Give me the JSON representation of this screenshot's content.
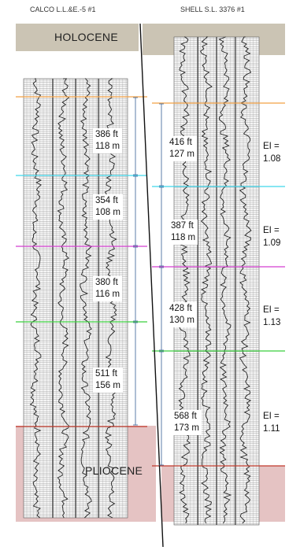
{
  "wells": {
    "left": {
      "name": "CALCO  L.L.&E.-5  #1"
    },
    "right": {
      "name": "SHELL  S.L. 3376 #1"
    }
  },
  "formations": {
    "top": "HOLOCENE",
    "bottom": "PLIOCENE"
  },
  "colors": {
    "holocene_band": "#cbc4b4",
    "pliocene_band": "#e2bcbc",
    "marker_1": "#f2a043",
    "marker_2": "#3fd6ea",
    "marker_3": "#d43fd0",
    "marker_4": "#39cf3c",
    "marker_5": "#c0392b",
    "dimension_lines": "#4a6fa0",
    "fault": "#111111"
  },
  "left_intervals": [
    {
      "ft": "386 ft",
      "m": "118 m"
    },
    {
      "ft": "354 ft",
      "m": "108 m"
    },
    {
      "ft": "380 ft",
      "m": "116 m"
    },
    {
      "ft": "511 ft",
      "m": "156 m"
    }
  ],
  "right_intervals": [
    {
      "ft": "416 ft",
      "m": "127 m",
      "ei_label": "EI =",
      "ei_value": "1.08"
    },
    {
      "ft": "387 ft",
      "m": "118 m",
      "ei_label": "EI =",
      "ei_value": "1.09"
    },
    {
      "ft": "428 ft",
      "m": "130 m",
      "ei_label": "EI =",
      "ei_value": "1.13"
    },
    {
      "ft": "568 ft",
      "m": "173 m",
      "ei_label": "EI =",
      "ei_value": "1.11"
    }
  ]
}
